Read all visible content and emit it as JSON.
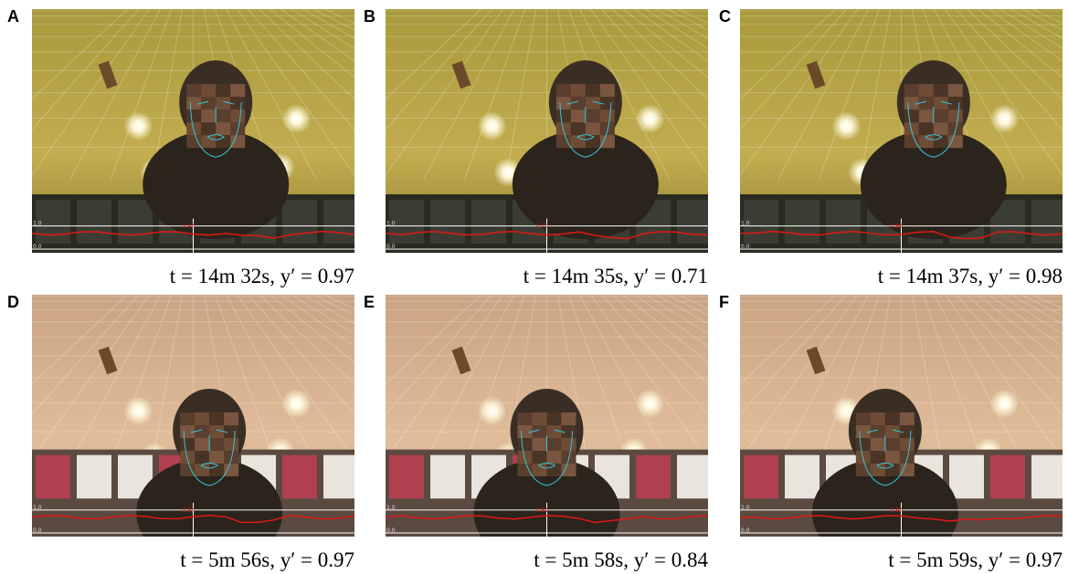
{
  "figure": {
    "plot_top_label": "1.0",
    "plot_bottom_label": "0.0",
    "panels": [
      {
        "letter": "A",
        "caption": "t = 14m 32s, y′ = 0.97",
        "overlay_value": "0.97"
      },
      {
        "letter": "B",
        "caption": "t = 14m 35s, y′ = 0.71",
        "overlay_value": "0.71"
      },
      {
        "letter": "C",
        "caption": "t = 14m 37s, y′ = 0.98",
        "overlay_value": "0.98"
      },
      {
        "letter": "D",
        "caption": "t = 5m 56s, y′ = 0.97",
        "overlay_value": "0.97"
      },
      {
        "letter": "E",
        "caption": "t = 5m 58s, y′ = 0.84",
        "overlay_value": "0.84"
      },
      {
        "letter": "F",
        "caption": "t = 5m 59s, y′ = 0.97",
        "overlay_value": "0.97"
      }
    ]
  }
}
